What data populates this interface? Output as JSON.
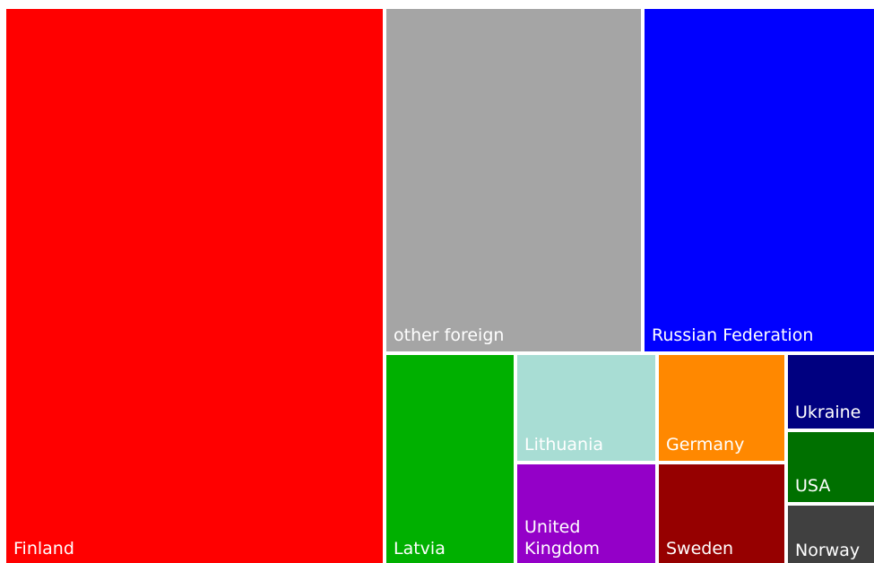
{
  "chart_data": {
    "type": "treemap",
    "title": "",
    "items": [
      {
        "name": "Finland",
        "label": "Finland",
        "color": "#ff0000"
      },
      {
        "name": "other foreign",
        "label": "other foreign",
        "color": "#a5a5a5"
      },
      {
        "name": "Russian Federation",
        "label": "Russian Federation",
        "color": "#0000ff"
      },
      {
        "name": "Latvia",
        "label": "Latvia",
        "color": "#00b000"
      },
      {
        "name": "Lithuania",
        "label": "Lithuania",
        "color": "#a8ddd4"
      },
      {
        "name": "United Kingdom",
        "label": " United\nKingdom",
        "color": "#9400c8"
      },
      {
        "name": "Germany",
        "label": "Germany",
        "color": "#ff8800"
      },
      {
        "name": "Sweden",
        "label": "Sweden",
        "color": "#960000"
      },
      {
        "name": "Ukraine",
        "label": "Ukraine",
        "color": "#000080"
      },
      {
        "name": "USA",
        "label": "USA",
        "color": "#007000"
      },
      {
        "name": "Norway",
        "label": "Norway",
        "color": "#404040"
      }
    ]
  }
}
